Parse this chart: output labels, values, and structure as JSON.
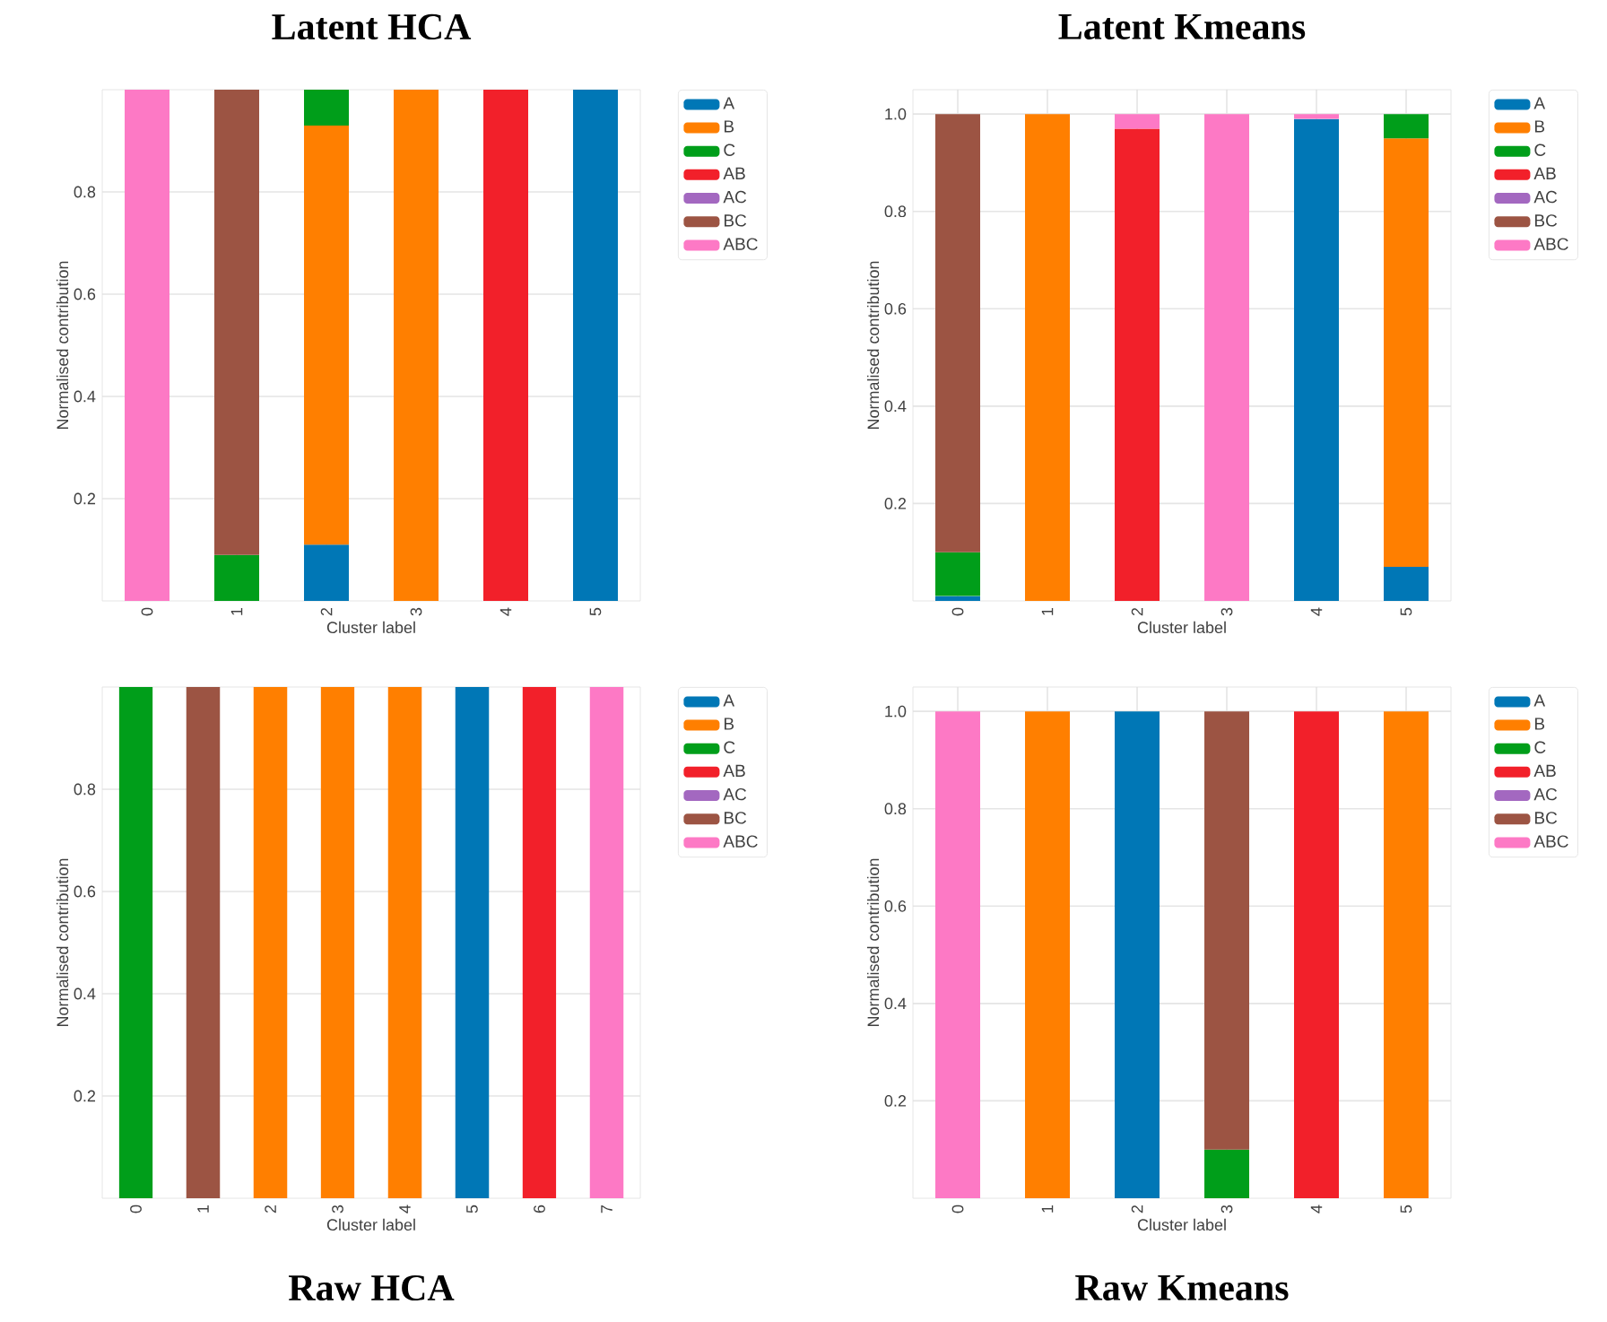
{
  "chart_data": [
    {
      "type": "bar",
      "stacked": true,
      "title": "Latent HCA",
      "xlabel": "Cluster label",
      "ylabel": "Normalised contribution",
      "categories": [
        "0",
        "1",
        "2",
        "3",
        "4",
        "5"
      ],
      "ylim": [
        0,
        1
      ],
      "yticks": [
        0.2,
        0.4,
        0.6,
        0.8
      ],
      "grid": true,
      "legend": "right",
      "series": [
        {
          "name": "A",
          "color": "#0077b6",
          "values": [
            0,
            0,
            0.11,
            0,
            0,
            1.0
          ]
        },
        {
          "name": "B",
          "color": "#ff7f00",
          "values": [
            0,
            0,
            0.82,
            1.0,
            0,
            0
          ]
        },
        {
          "name": "C",
          "color": "#009e1a",
          "values": [
            0,
            0.09,
            0.07,
            0,
            0,
            0
          ]
        },
        {
          "name": "AB",
          "color": "#f2202a",
          "values": [
            0,
            0,
            0,
            0,
            1.0,
            0
          ]
        },
        {
          "name": "AC",
          "color": "#a368c0",
          "values": [
            0,
            0,
            0,
            0,
            0,
            0
          ]
        },
        {
          "name": "BC",
          "color": "#9c5443",
          "values": [
            0,
            0.91,
            0,
            0,
            0,
            0
          ]
        },
        {
          "name": "ABC",
          "color": "#fd79c5",
          "values": [
            1.0,
            0,
            0,
            0,
            0,
            0
          ]
        }
      ]
    },
    {
      "type": "bar",
      "stacked": true,
      "title": "Latent Kmeans",
      "xlabel": "Cluster label",
      "ylabel": "Normalised contribution",
      "categories": [
        "0",
        "1",
        "2",
        "3",
        "4",
        "5"
      ],
      "ylim": [
        0,
        1.05
      ],
      "yticks": [
        0.2,
        0.4,
        0.6,
        0.8,
        {
          "value": 1.0,
          "label": "1.0"
        }
      ],
      "grid": true,
      "legend": "right",
      "series": [
        {
          "name": "A",
          "color": "#0077b6",
          "values": [
            0.01,
            0,
            0,
            0,
            0.99,
            0.07
          ]
        },
        {
          "name": "B",
          "color": "#ff7f00",
          "values": [
            0,
            1.0,
            0,
            0,
            0,
            0.88
          ]
        },
        {
          "name": "C",
          "color": "#009e1a",
          "values": [
            0.09,
            0,
            0,
            0,
            0,
            0.05
          ]
        },
        {
          "name": "AB",
          "color": "#f2202a",
          "values": [
            0,
            0,
            0.97,
            0,
            0,
            0
          ]
        },
        {
          "name": "AC",
          "color": "#a368c0",
          "values": [
            0,
            0,
            0,
            0,
            0,
            0
          ]
        },
        {
          "name": "BC",
          "color": "#9c5443",
          "values": [
            0.9,
            0,
            0,
            0,
            0,
            0
          ]
        },
        {
          "name": "ABC",
          "color": "#fd79c5",
          "values": [
            0,
            0,
            0.03,
            1.0,
            0.01,
            0
          ]
        }
      ]
    },
    {
      "type": "bar",
      "stacked": true,
      "title": "Raw HCA",
      "xlabel": "Cluster label",
      "ylabel": "Normalised contribution",
      "categories": [
        "0",
        "1",
        "2",
        "3",
        "4",
        "5",
        "6",
        "7"
      ],
      "ylim": [
        0,
        1
      ],
      "yticks": [
        0.2,
        0.4,
        0.6,
        0.8
      ],
      "grid": true,
      "legend": "right",
      "series": [
        {
          "name": "A",
          "color": "#0077b6",
          "values": [
            0,
            0,
            0,
            0,
            0,
            1.0,
            0,
            0
          ]
        },
        {
          "name": "B",
          "color": "#ff7f00",
          "values": [
            0,
            0,
            1.0,
            1.0,
            1.0,
            0,
            0,
            0
          ]
        },
        {
          "name": "C",
          "color": "#009e1a",
          "values": [
            1.0,
            0,
            0,
            0,
            0,
            0,
            0,
            0
          ]
        },
        {
          "name": "AB",
          "color": "#f2202a",
          "values": [
            0,
            0,
            0,
            0,
            0,
            0,
            1.0,
            0
          ]
        },
        {
          "name": "AC",
          "color": "#a368c0",
          "values": [
            0,
            0,
            0,
            0,
            0,
            0,
            0,
            0
          ]
        },
        {
          "name": "BC",
          "color": "#9c5443",
          "values": [
            0,
            1.0,
            0,
            0,
            0,
            0,
            0,
            0
          ]
        },
        {
          "name": "ABC",
          "color": "#fd79c5",
          "values": [
            0,
            0,
            0,
            0,
            0,
            0,
            0,
            1.0
          ]
        }
      ]
    },
    {
      "type": "bar",
      "stacked": true,
      "title": "Raw Kmeans",
      "xlabel": "Cluster label",
      "ylabel": "Normalised contribution",
      "categories": [
        "0",
        "1",
        "2",
        "3",
        "4",
        "5"
      ],
      "ylim": [
        0,
        1.05
      ],
      "yticks": [
        0.2,
        0.4,
        0.6,
        0.8,
        {
          "value": 1.0,
          "label": "1.0"
        }
      ],
      "grid": true,
      "legend": "right",
      "series": [
        {
          "name": "A",
          "color": "#0077b6",
          "values": [
            0,
            0,
            1.0,
            0,
            0,
            0
          ]
        },
        {
          "name": "B",
          "color": "#ff7f00",
          "values": [
            0,
            1.0,
            0,
            0,
            0,
            1.0
          ]
        },
        {
          "name": "C",
          "color": "#009e1a",
          "values": [
            0,
            0,
            0,
            0.1,
            0,
            0
          ]
        },
        {
          "name": "AB",
          "color": "#f2202a",
          "values": [
            0,
            0,
            0,
            0,
            1.0,
            0
          ]
        },
        {
          "name": "AC",
          "color": "#a368c0",
          "values": [
            0,
            0,
            0,
            0,
            0,
            0
          ]
        },
        {
          "name": "BC",
          "color": "#9c5443",
          "values": [
            0,
            0,
            0,
            0.9,
            0,
            0
          ]
        },
        {
          "name": "ABC",
          "color": "#fd79c5",
          "values": [
            1.0,
            0,
            0,
            0,
            0,
            0
          ]
        }
      ]
    }
  ]
}
